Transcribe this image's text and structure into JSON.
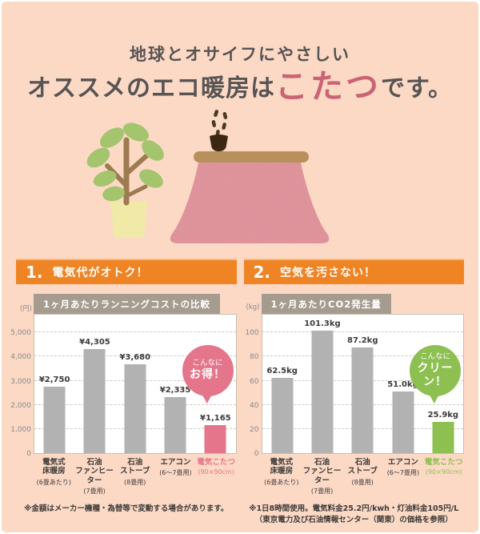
{
  "page": {
    "bg_color": "#fcd9c5",
    "accent_orange": "#ef8424",
    "title": {
      "line1": "地球とオサイフにやさしい",
      "line2_pre": "オススメのエコ暖房は",
      "line2_highlight": "こたつ",
      "line2_post": "です。",
      "highlight_color": "#ca6474"
    },
    "illustration": {
      "description": "kotatsu-table-with-teacup-and-potted-plant",
      "blanket_color": "#e28f98",
      "table_color": "#b8905c",
      "cup_color": "#3b2712",
      "steam_color": "#4a3a20",
      "leaf_color": "#a5c46e",
      "stem_color": "#9d7a50",
      "pot_color": "#f0e9a7"
    }
  },
  "sections": [
    {
      "number": "1.",
      "label": "電気代がオトク！"
    },
    {
      "number": "2.",
      "label": "空気を汚さない！"
    }
  ],
  "chart_data": [
    {
      "type": "bar",
      "title": "1ヶ月あたりランニングコストの比較",
      "unit_label": "(円)",
      "ylim": [
        0,
        5000
      ],
      "grid": "dashed horizontal",
      "yticks": [
        {
          "label": "5,000",
          "value": 5000
        },
        {
          "label": "4,000",
          "value": 4000
        },
        {
          "label": "3,000",
          "value": 3000
        },
        {
          "label": "2,000",
          "value": 2000
        },
        {
          "label": "1,000",
          "value": 1000
        },
        {
          "label": "0",
          "value": 0
        }
      ],
      "categories": [
        {
          "lines": [
            "電気式",
            "床暖房"
          ],
          "note": "(6畳あたり)"
        },
        {
          "lines": [
            "石油",
            "ファンヒーター"
          ],
          "note": "(7畳用)"
        },
        {
          "lines": [
            "石油",
            "ストーブ"
          ],
          "note": "(8畳用)"
        },
        {
          "lines": [
            "エアコン"
          ],
          "note": "(6～7畳用)"
        },
        {
          "lines": [
            "電気こたつ"
          ],
          "note": "(90×90cm)"
        }
      ],
      "values": [
        2750,
        4305,
        3680,
        2335,
        1165
      ],
      "value_labels": [
        "¥2,750",
        "¥4,305",
        "¥3,680",
        "¥2,335",
        "¥1,165"
      ],
      "bar_color": "#b2b2b2",
      "highlight_index": 4,
      "highlight_color": "#e5758a",
      "badge": {
        "line1": "こんなに",
        "line2": "お得！",
        "color": "#e5758a"
      }
    },
    {
      "type": "bar",
      "title": "1ヶ月あたりCO2発生量",
      "unit_label": "(kg)",
      "ylim": [
        0,
        100
      ],
      "grid": "dashed horizontal",
      "yticks": [
        {
          "label": "100",
          "value": 100
        },
        {
          "label": "80",
          "value": 80
        },
        {
          "label": "60",
          "value": 60
        },
        {
          "label": "40",
          "value": 40
        },
        {
          "label": "20",
          "value": 20
        },
        {
          "label": "0",
          "value": 0
        }
      ],
      "categories": [
        {
          "lines": [
            "電気式",
            "床暖房"
          ],
          "note": "(6畳あたり)"
        },
        {
          "lines": [
            "石油",
            "ファンヒーター"
          ],
          "note": "(7畳用)"
        },
        {
          "lines": [
            "石油",
            "ストーブ"
          ],
          "note": "(8畳用)"
        },
        {
          "lines": [
            "エアコン"
          ],
          "note": "(6～7畳用)"
        },
        {
          "lines": [
            "電気こたつ"
          ],
          "note": "(90×90cm)"
        }
      ],
      "values": [
        62.5,
        101.3,
        87.2,
        51.0,
        25.9
      ],
      "value_labels": [
        "62.5kg",
        "101.3kg",
        "87.2kg",
        "51.0kg",
        "25.9kg"
      ],
      "bar_color": "#b2b2b2",
      "highlight_index": 4,
      "highlight_color": "#8ebf51",
      "badge": {
        "line1": "こんなに",
        "line2": "クリーン！",
        "color": "#8ebf51"
      }
    }
  ],
  "footnotes": {
    "left": "※金額はメーカー機種・為替等で変動する場合があります。",
    "right_line1": "※1日8時間使用。電気料金25.2円/kwh・灯油料金105円/L",
    "right_line2": "（東京電力及び石油情報センター（関東）の価格を参照）"
  }
}
